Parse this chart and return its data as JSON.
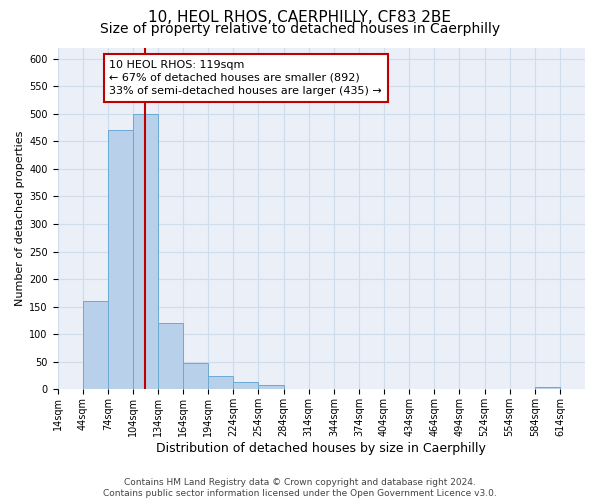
{
  "title": "10, HEOL RHOS, CAERPHILLY, CF83 2BE",
  "subtitle": "Size of property relative to detached houses in Caerphilly",
  "xlabel": "Distribution of detached houses by size in Caerphilly",
  "ylabel": "Number of detached properties",
  "bin_starts": [
    14,
    44,
    74,
    104,
    134,
    164,
    194,
    224,
    254,
    284,
    314,
    344,
    374,
    404,
    434,
    464,
    494,
    524,
    554,
    584
  ],
  "bin_width": 30,
  "bar_heights": [
    0,
    160,
    470,
    500,
    120,
    48,
    25,
    13,
    8,
    0,
    0,
    0,
    0,
    0,
    0,
    0,
    0,
    0,
    0,
    5
  ],
  "bar_color": "#b8d0ea",
  "bar_edge_color": "#6aaad4",
  "property_size": 119,
  "vline_color": "#c00000",
  "annotation_text": "10 HEOL RHOS: 119sqm\n← 67% of detached houses are smaller (892)\n33% of semi-detached houses are larger (435) →",
  "annotation_box_edge_color": "#c00000",
  "ylim": [
    0,
    620
  ],
  "yticks": [
    0,
    50,
    100,
    150,
    200,
    250,
    300,
    350,
    400,
    450,
    500,
    550,
    600
  ],
  "xtick_labels": [
    "14sqm",
    "44sqm",
    "74sqm",
    "104sqm",
    "134sqm",
    "164sqm",
    "194sqm",
    "224sqm",
    "254sqm",
    "284sqm",
    "314sqm",
    "344sqm",
    "374sqm",
    "404sqm",
    "434sqm",
    "464sqm",
    "494sqm",
    "524sqm",
    "554sqm",
    "584sqm",
    "614sqm"
  ],
  "xtick_positions": [
    14,
    44,
    74,
    104,
    134,
    164,
    194,
    224,
    254,
    284,
    314,
    344,
    374,
    404,
    434,
    464,
    494,
    524,
    554,
    584,
    614
  ],
  "grid_color": "#d0dcea",
  "bg_color": "#eaeff8",
  "footer_text": "Contains HM Land Registry data © Crown copyright and database right 2024.\nContains public sector information licensed under the Open Government Licence v3.0.",
  "title_fontsize": 11,
  "subtitle_fontsize": 10,
  "xlabel_fontsize": 9,
  "ylabel_fontsize": 8,
  "tick_fontsize": 7,
  "annotation_fontsize": 8,
  "footer_fontsize": 6.5
}
